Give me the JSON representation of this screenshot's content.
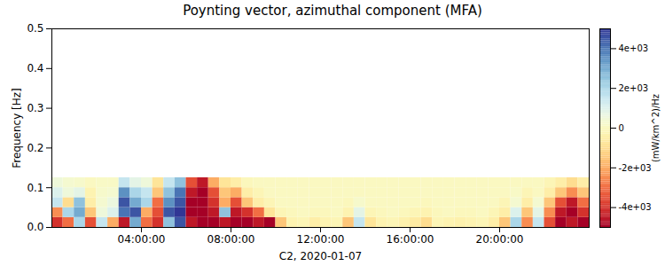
{
  "chart_data": {
    "type": "heatmap",
    "title": "Poynting vector, azimuthal component (MFA)",
    "x_label": "C2, 2020-01-07",
    "y_label": "Frequency [Hz]",
    "xlim": [
      0,
      24
    ],
    "xticks": [
      {
        "value": 4,
        "label": "04:00:00"
      },
      {
        "value": 8,
        "label": "08:00:00"
      },
      {
        "value": 12,
        "label": "12:00:00"
      },
      {
        "value": 16,
        "label": "16:00:00"
      },
      {
        "value": 20,
        "label": "20:00:00"
      }
    ],
    "ylim": [
      0,
      0.5
    ],
    "yticks": [
      {
        "value": 0,
        "label": "0.0"
      },
      {
        "value": 0.1,
        "label": "0.1"
      },
      {
        "value": 0.2,
        "label": "0.2"
      },
      {
        "value": 0.3,
        "label": "0.3"
      },
      {
        "value": 0.4,
        "label": "0.4"
      },
      {
        "value": 0.5,
        "label": "0.5"
      }
    ],
    "time_bins": [
      0,
      0.5,
      1,
      1.5,
      2,
      2.5,
      3,
      3.5,
      4,
      4.5,
      5,
      5.5,
      6,
      6.5,
      7,
      7.5,
      8,
      8.5,
      9,
      9.5,
      10,
      10.5,
      11,
      11.5,
      12,
      12.5,
      13,
      13.5,
      14,
      14.5,
      15,
      15.5,
      16,
      16.5,
      17,
      17.5,
      18,
      18.5,
      19,
      19.5,
      20,
      20.5,
      21,
      21.5,
      22,
      22.5,
      23,
      23.5,
      24
    ],
    "frequency_bins": [
      0,
      0.025,
      0.05,
      0.075,
      0.1,
      0.125
    ],
    "cells": [
      [
        -4000,
        -3000,
        2000,
        -3500,
        1500,
        -2000,
        -4500,
        3000,
        -3000,
        -4000,
        2500,
        4500,
        -4500,
        -5000,
        -5000,
        -4500,
        -5000,
        -5000,
        -4500,
        -5000,
        -1500,
        -300,
        -200,
        -500,
        -300,
        -200,
        -1500,
        1500,
        -800,
        -300,
        -200,
        -400,
        -600,
        -1000,
        -200,
        -300,
        -400,
        -300,
        -200,
        -500,
        -1500,
        2000,
        -2500,
        1500,
        -3500,
        -5000,
        -4500,
        -5000
      ],
      [
        -2500,
        2000,
        3000,
        -1500,
        500,
        1000,
        4000,
        4500,
        -2000,
        -3500,
        4500,
        5000,
        -5000,
        -5000,
        -4500,
        2500,
        -4500,
        -4000,
        -3000,
        -800,
        -200,
        -100,
        0,
        -100,
        -100,
        0,
        -300,
        800,
        -200,
        -100,
        0,
        -100,
        -200,
        -300,
        -100,
        0,
        -100,
        -100,
        0,
        -200,
        -500,
        1000,
        -1500,
        800,
        -2500,
        -4500,
        -5000,
        -4000
      ],
      [
        1500,
        -1000,
        2500,
        -500,
        300,
        600,
        4500,
        3000,
        2000,
        -3000,
        3500,
        4500,
        -5000,
        -5000,
        -4000,
        -2000,
        -3500,
        -1500,
        -500,
        -200,
        0,
        0,
        0,
        0,
        0,
        0,
        -100,
        200,
        0,
        0,
        0,
        0,
        0,
        -100,
        0,
        0,
        0,
        0,
        0,
        0,
        -200,
        300,
        -500,
        300,
        -1500,
        -3500,
        -4500,
        -3000
      ],
      [
        1000,
        500,
        800,
        -300,
        200,
        300,
        3500,
        2000,
        1500,
        -1500,
        2500,
        4000,
        -4500,
        -5000,
        -3500,
        -1500,
        -2000,
        -500,
        -200,
        0,
        0,
        0,
        0,
        0,
        0,
        0,
        0,
        0,
        0,
        0,
        0,
        0,
        0,
        0,
        0,
        0,
        0,
        0,
        0,
        0,
        0,
        100,
        -200,
        0,
        -500,
        -1500,
        -2500,
        -1500
      ],
      [
        500,
        300,
        200,
        0,
        100,
        100,
        1500,
        800,
        500,
        -800,
        1500,
        2500,
        -3500,
        -4500,
        -2000,
        -800,
        -500,
        -100,
        0,
        0,
        0,
        0,
        0,
        0,
        0,
        0,
        0,
        0,
        0,
        0,
        0,
        0,
        0,
        0,
        0,
        0,
        0,
        0,
        0,
        0,
        0,
        0,
        0,
        0,
        -200,
        -500,
        -1000,
        -500
      ]
    ],
    "colorbar": {
      "label": "(mW/km^2)/Hz",
      "range": [
        -5000,
        5000
      ],
      "ticks": [
        {
          "value": -4000,
          "label": "-4e+03"
        },
        {
          "value": -2000,
          "label": "-2e+03"
        },
        0,
        {
          "value": 2000,
          "label": "2e+03"
        },
        {
          "value": 4000,
          "label": "4e+03"
        }
      ]
    }
  }
}
